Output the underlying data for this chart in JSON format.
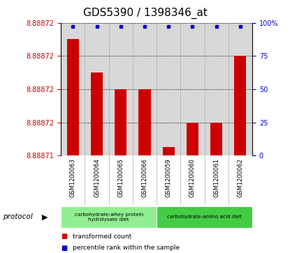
{
  "title": "GDS5390 / 1398346_at",
  "samples": [
    "GSM1200063",
    "GSM1200064",
    "GSM1200065",
    "GSM1200066",
    "GSM1200059",
    "GSM1200060",
    "GSM1200061",
    "GSM1200062"
  ],
  "bar_values": [
    8.888724,
    8.88872,
    8.888718,
    8.888718,
    8.888711,
    8.888714,
    8.888714,
    8.888722
  ],
  "percentile_values": [
    97,
    97,
    97,
    97,
    97,
    97,
    97,
    97
  ],
  "y_min": 8.88871,
  "y_max": 8.888726,
  "y_ticks": [
    8.88871,
    8.888714,
    8.888718,
    8.888722,
    8.888726
  ],
  "y_tick_labels": [
    "8.88871",
    "8.88872",
    "8.88872",
    "8.88872",
    "8.88872"
  ],
  "right_y_ticks": [
    0,
    25,
    50,
    75,
    100
  ],
  "right_y_tick_labels": [
    "0",
    "25",
    "50",
    "75",
    "100%"
  ],
  "bar_color": "#cc0000",
  "dot_color": "#0000cc",
  "grid_color": "#000000",
  "protocol_groups": [
    {
      "label": "carbohydrate-whey protein\nhydrolysate diet",
      "start": 0,
      "end": 4,
      "color": "#90ee90"
    },
    {
      "label": "carbohydrate-amino acid diet",
      "start": 4,
      "end": 8,
      "color": "#44cc44"
    }
  ],
  "protocol_label": "protocol",
  "legend_items": [
    {
      "color": "#cc0000",
      "label": "transformed count"
    },
    {
      "color": "#0000cc",
      "label": "percentile rank within the sample"
    }
  ],
  "title_fontsize": 11,
  "tick_fontsize": 7,
  "sample_fontsize": 6,
  "bg_color": "#d8d8d8"
}
